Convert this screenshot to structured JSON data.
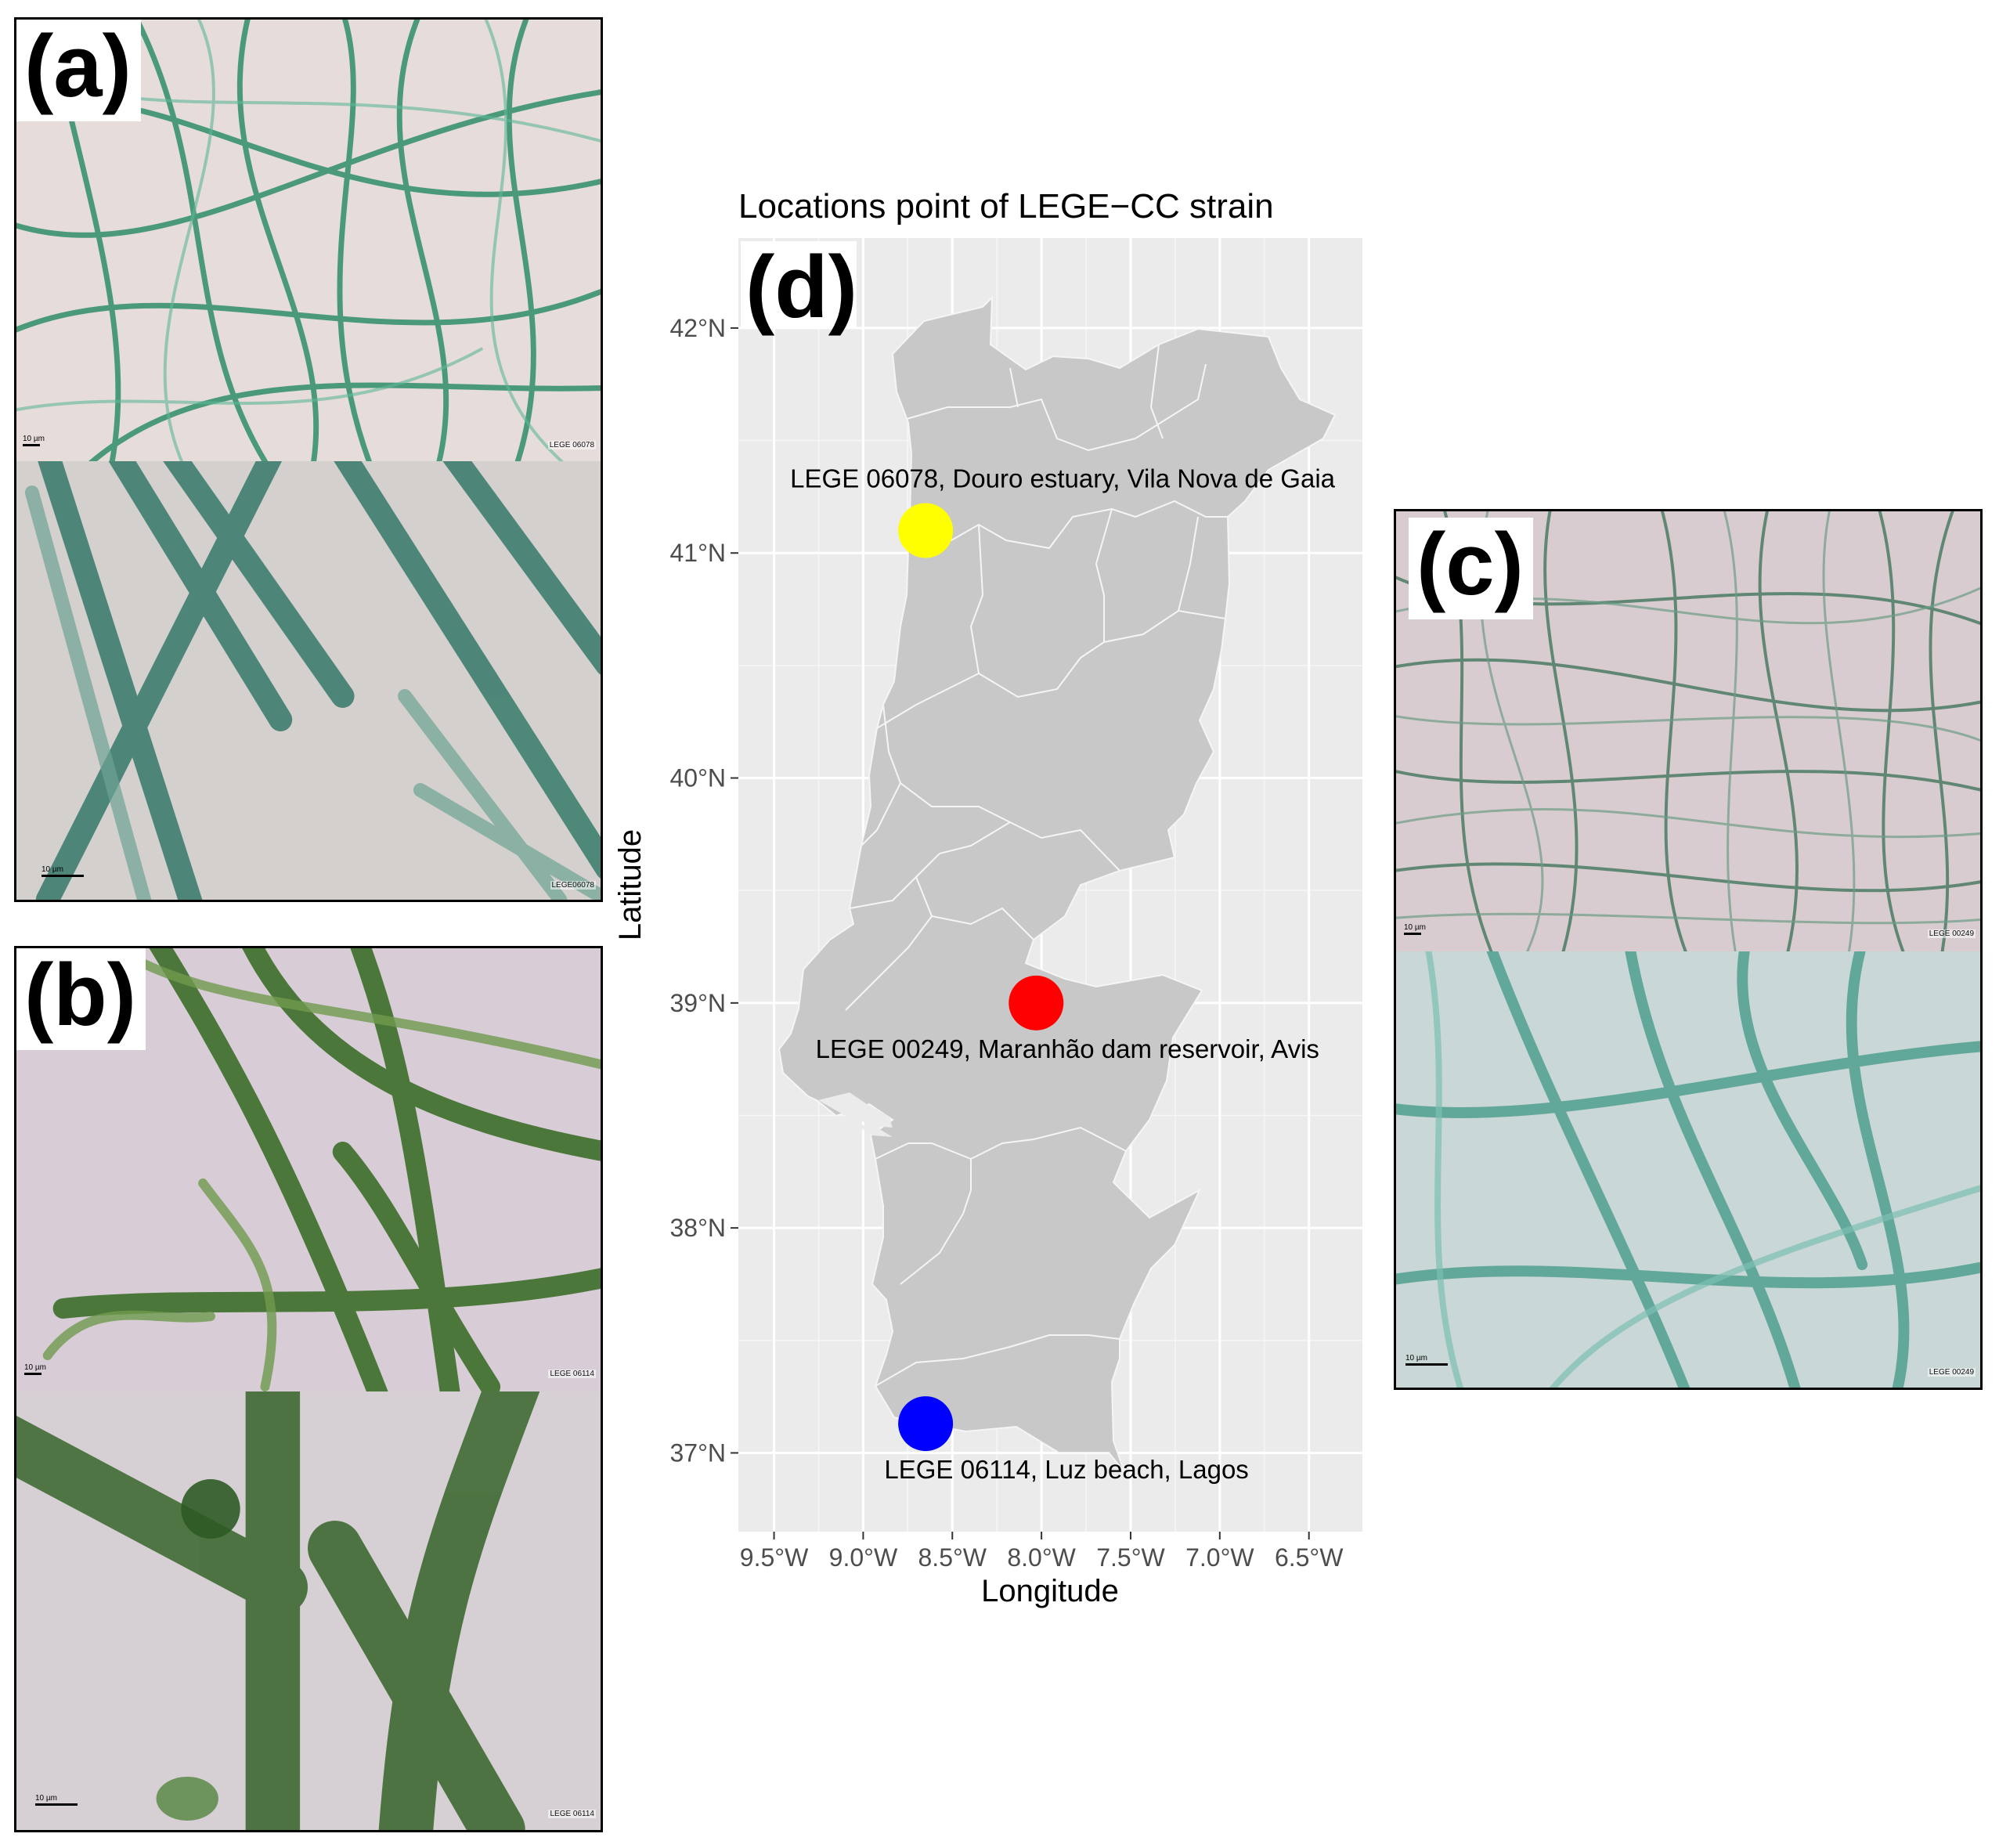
{
  "panels": {
    "a": {
      "label": "(a)",
      "top_scale": "10 µm",
      "top_tag": "LEGE 06078",
      "bottom_scale": "10 µm",
      "bottom_tag": "LEGE06078",
      "top_colors": [
        "#e8dcdc",
        "#2f8f6a"
      ],
      "bottom_colors": [
        "#d4d0cc",
        "#3f7f6f"
      ]
    },
    "b": {
      "label": "(b)",
      "top_scale": "10 µm",
      "top_tag": "LEGE 06114",
      "bottom_scale": "10 µm",
      "bottom_tag": "LEGE 06114",
      "top_colors": [
        "#d8cdd8",
        "#3d6e2a"
      ],
      "bottom_colors": [
        "#d6cfd3",
        "#3f6a33"
      ]
    },
    "c": {
      "label": "(c)",
      "top_scale": "10 µm",
      "top_tag": "LEGE 00249",
      "bottom_scale": "10 µm",
      "bottom_tag": "LEGE 00249",
      "top_colors": [
        "#d9cdd0",
        "#4c7c64"
      ],
      "bottom_colors": [
        "#c8d9d8",
        "#4f9f90"
      ]
    }
  },
  "map": {
    "title": "Locations point of LEGE−CC strain",
    "panel_label": "(d)",
    "xlabel": "Longitude",
    "ylabel": "Latitude",
    "background": "#ebebeb",
    "land_color": "#c8c8c8",
    "border_color": "#f5f5f5",
    "xlim": [
      -9.7,
      -6.2
    ],
    "ylim": [
      36.65,
      42.4
    ],
    "x_ticks": [
      {
        "value": -9.5,
        "label": "9.5°W"
      },
      {
        "value": -9.0,
        "label": "9.0°W"
      },
      {
        "value": -8.5,
        "label": "8.5°W"
      },
      {
        "value": -8.0,
        "label": "8.0°W"
      },
      {
        "value": -7.5,
        "label": "7.5°W"
      },
      {
        "value": -7.0,
        "label": "7.0°W"
      },
      {
        "value": -6.5,
        "label": "6.5°W"
      }
    ],
    "y_ticks": [
      {
        "value": 37,
        "label": "37°N"
      },
      {
        "value": 38,
        "label": "38°N"
      },
      {
        "value": 39,
        "label": "39°N"
      },
      {
        "value": 40,
        "label": "40°N"
      },
      {
        "value": 41,
        "label": "41°N"
      },
      {
        "value": 42,
        "label": "42°N"
      }
    ],
    "points": [
      {
        "label": "LEGE 06078, Douro estuary, Vila Nova de Gaia",
        "lon": -8.65,
        "lat": 41.1,
        "color": "#ffff00"
      },
      {
        "label": "LEGE 00249, Maranhão dam reservoir, Avis",
        "lon": -8.03,
        "lat": 39.0,
        "color": "#ff0000"
      },
      {
        "label": "LEGE 06114, Luz beach, Lagos",
        "lon": -8.65,
        "lat": 37.13,
        "color": "#0000ff"
      }
    ]
  }
}
